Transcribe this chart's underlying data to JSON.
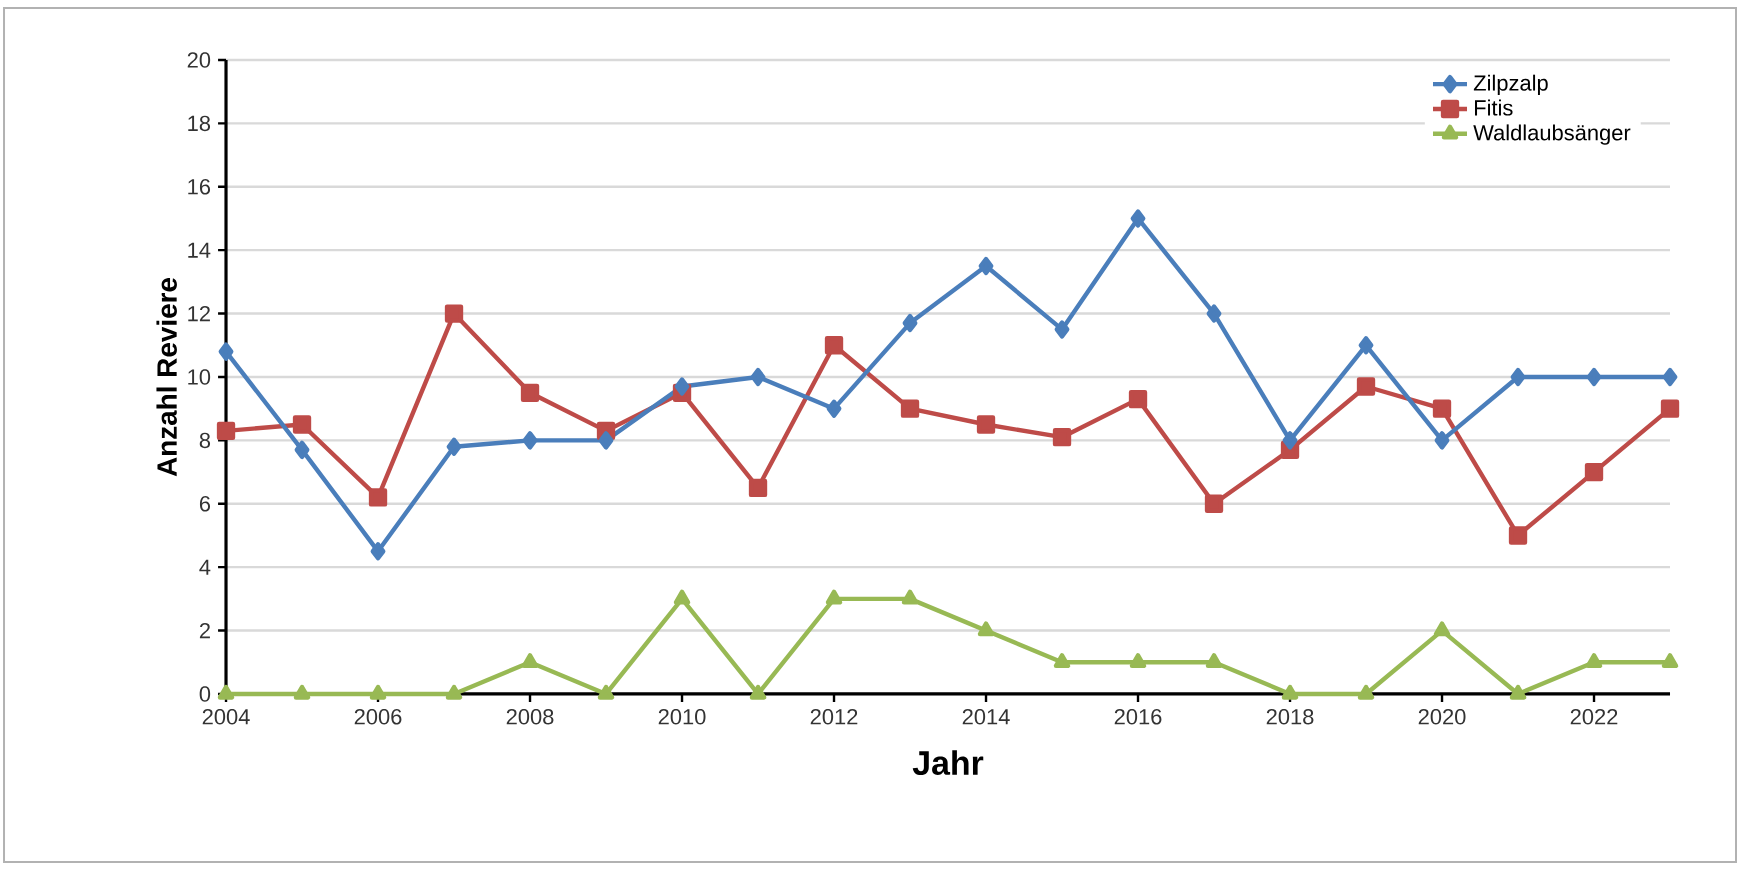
{
  "chart_data": {
    "type": "line",
    "xlabel": "Jahr",
    "ylabel": "Anzahl Reviere",
    "x": [
      2004,
      2005,
      2006,
      2007,
      2008,
      2009,
      2010,
      2011,
      2012,
      2013,
      2014,
      2015,
      2016,
      2017,
      2018,
      2019,
      2020,
      2021,
      2022,
      2023
    ],
    "series": [
      {
        "name": "Zilpzalp",
        "color": "#4a7ebb",
        "marker": "diamond",
        "values": [
          10.8,
          7.7,
          4.5,
          7.8,
          8,
          8,
          9.7,
          10,
          9,
          11.7,
          13.5,
          11.5,
          15,
          12,
          8,
          11,
          8,
          10,
          10,
          10
        ]
      },
      {
        "name": "Fitis",
        "color": "#be4b48",
        "marker": "square",
        "values": [
          8.3,
          8.5,
          6.2,
          12,
          9.5,
          8.3,
          9.5,
          6.5,
          11,
          9,
          8.5,
          8.1,
          9.3,
          6,
          7.7,
          9.7,
          9,
          5,
          7,
          9
        ]
      },
      {
        "name": "Waldlaubsänger",
        "color": "#98b954",
        "marker": "triangle",
        "values": [
          0,
          0,
          0,
          0,
          1,
          0,
          3,
          0,
          3,
          3,
          2,
          1,
          1,
          1,
          0,
          0,
          2,
          0,
          1,
          1
        ]
      }
    ],
    "xlim": [
      2004,
      2023
    ],
    "xticks": [
      2004,
      2006,
      2008,
      2010,
      2012,
      2014,
      2016,
      2018,
      2020,
      2022
    ],
    "ylim": [
      0,
      20
    ],
    "yticks": [
      0,
      2,
      4,
      6,
      8,
      10,
      12,
      14,
      16,
      18,
      20
    ],
    "grid": "y",
    "legend": "top right",
    "line_style": "solid"
  }
}
